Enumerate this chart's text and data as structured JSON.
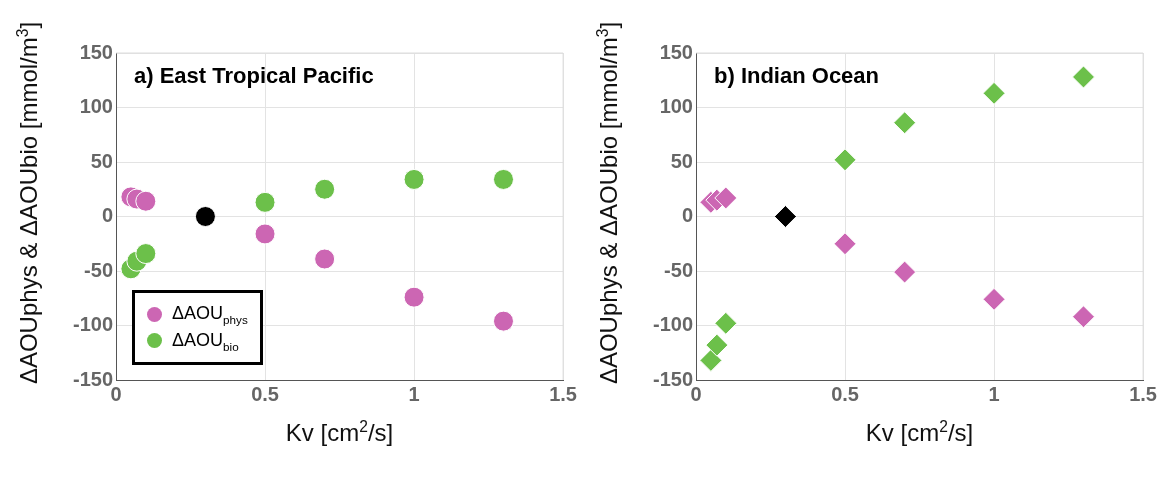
{
  "chart_data": [
    {
      "type": "scatter",
      "title": "a) East Tropical Pacific",
      "xlabel": "Kv [cm$^{2}$/s]",
      "ylabel": "ΔAOUphys  & ΔAOUbio [mmol/m$^{3}$]",
      "marker": "circle",
      "grid": true,
      "legend": "bottom left",
      "xlim": [
        0,
        1.5
      ],
      "xticks": [
        0,
        0.5,
        1,
        1.5
      ],
      "ylim": [
        -150,
        150
      ],
      "yticks": [
        -150,
        -100,
        -50,
        0,
        50,
        100,
        150
      ],
      "series": [
        {
          "name": "ΔAOU$_{phys}$",
          "color": "#cc66b3",
          "x": [
            0.05,
            0.07,
            0.1,
            0.5,
            0.7,
            1,
            1.3
          ],
          "values": [
            18,
            16,
            14,
            -16,
            -39,
            -74,
            -96
          ]
        },
        {
          "name": "ΔAOU$_{bio}$",
          "color": "#6cc04a",
          "x": [
            0.05,
            0.07,
            0.1,
            0.5,
            0.7,
            1,
            1.3
          ],
          "values": [
            -48,
            -41,
            -34,
            13,
            25,
            34,
            34
          ]
        },
        {
          "color": "#000000",
          "x": [
            0.3
          ],
          "values": [
            0
          ]
        }
      ]
    },
    {
      "type": "scatter",
      "title": "b) Indian Ocean",
      "xlabel": "Kv [cm$^{2}$/s]",
      "ylabel": "ΔAOUphys  & ΔAOUbio [mmol/m$^{3}$]",
      "marker": "diamond",
      "grid": true,
      "xlim": [
        0,
        1.5
      ],
      "xticks": [
        0,
        0.5,
        1,
        1.5
      ],
      "ylim": [
        -150,
        150
      ],
      "yticks": [
        -150,
        -100,
        -50,
        0,
        50,
        100,
        150
      ],
      "series": [
        {
          "color": "#cc66b3",
          "x": [
            0.05,
            0.07,
            0.1,
            0.5,
            0.7,
            1,
            1.3
          ],
          "values": [
            13,
            15,
            17,
            -25,
            -51,
            -76,
            -92
          ]
        },
        {
          "color": "#6cc04a",
          "x": [
            0.05,
            0.07,
            0.1,
            0.5,
            0.7,
            1,
            1.3
          ],
          "values": [
            -132,
            -118,
            -98,
            52,
            86,
            113,
            128
          ]
        },
        {
          "color": "#000000",
          "x": [
            0.3
          ],
          "values": [
            0
          ]
        }
      ]
    }
  ]
}
